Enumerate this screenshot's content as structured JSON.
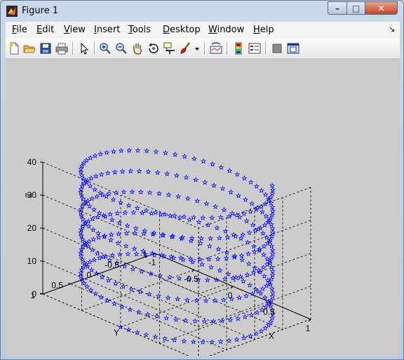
{
  "window": {
    "title": "Figure 1",
    "min_glyph": "–",
    "max_glyph": "□",
    "close_glyph": "✕"
  },
  "menu": [
    {
      "id": "file",
      "accel": "F",
      "rest": "ile"
    },
    {
      "id": "edit",
      "accel": "E",
      "rest": "dit"
    },
    {
      "id": "view",
      "accel": "V",
      "rest": "iew"
    },
    {
      "id": "insert",
      "accel": "I",
      "rest": "nsert"
    },
    {
      "id": "tools",
      "accel": "T",
      "rest": "ools"
    },
    {
      "id": "desktop",
      "accel": "D",
      "rest": "esktop"
    },
    {
      "id": "window",
      "accel": "W",
      "rest": "indow"
    },
    {
      "id": "help",
      "accel": "H",
      "rest": "elp"
    }
  ],
  "toolbar_icons": [
    "new-figure-icon",
    "open-file-icon",
    "save-icon",
    "print-icon",
    "pointer-icon",
    "zoom-in-icon",
    "zoom-out-icon",
    "pan-icon",
    "rotate-3d-icon",
    "data-cursor-icon",
    "brush-icon",
    "brush-dropdown-icon",
    "link-plot-icon",
    "insert-colorbar-icon",
    "insert-legend-icon",
    "hide-plot-tools-icon",
    "show-plot-tools-icon"
  ],
  "chart_data": {
    "type": "scatter",
    "projection": "3d",
    "marker": "pentagram",
    "marker_color": "#0000ff",
    "series": [
      {
        "x": "sin(t)",
        "y": "cos(t)",
        "z": "t",
        "t_range": [
          0,
          40
        ]
      }
    ],
    "xlabel": "X",
    "ylabel": "Y",
    "zlabel": "Z",
    "xlim": [
      -1,
      1
    ],
    "ylim": [
      -1,
      1
    ],
    "zlim": [
      0,
      40
    ],
    "x_ticks": [
      "-1",
      "-0.5",
      "0",
      "0.5",
      "1"
    ],
    "y_ticks": [
      "-1",
      "-0.5",
      "0",
      "0.5",
      "1"
    ],
    "z_ticks": [
      "0",
      "10",
      "20",
      "30",
      "40"
    ],
    "grid": true,
    "grid_style": "dashed",
    "background": "#cccccc",
    "axes_color": "#000000"
  }
}
